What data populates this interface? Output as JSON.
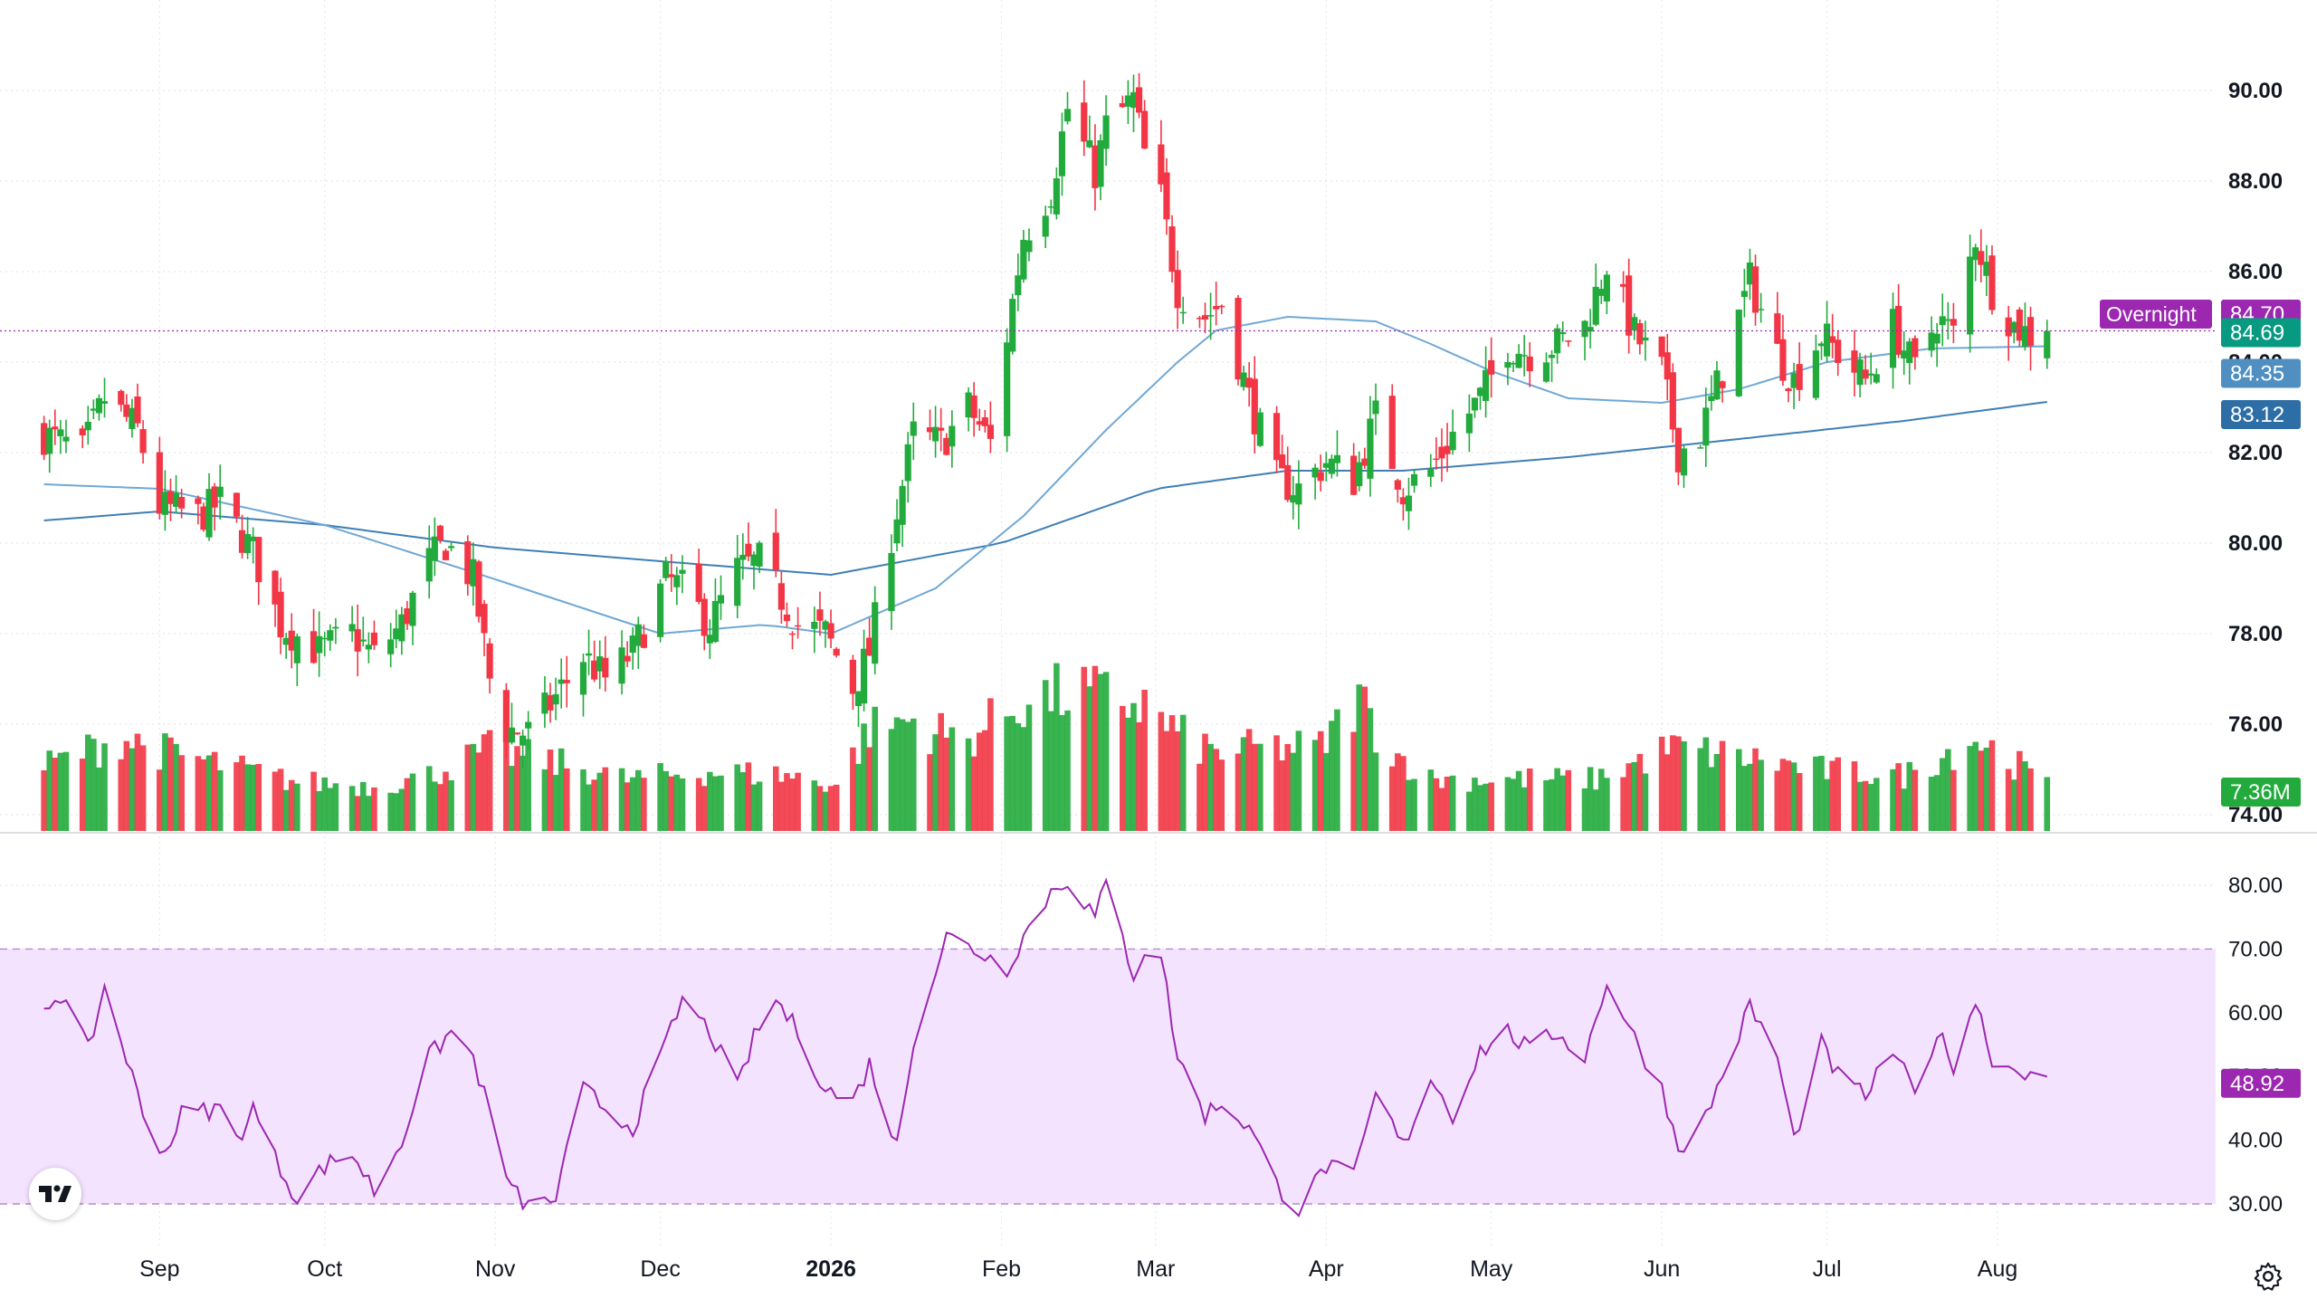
{
  "chart_data": [
    {
      "type": "candlestick",
      "title": "",
      "y_axis_ticks": [
        "90.00",
        "88.00",
        "86.00",
        "84.00",
        "82.00",
        "80.00",
        "78.00",
        "76.00",
        "74.00"
      ],
      "ylim": [
        73.6,
        90.8
      ],
      "x_axis_ticks": [
        {
          "label": "Sep",
          "date": "2025-09-01",
          "bold": false
        },
        {
          "label": "Oct",
          "date": "2025-10-01",
          "bold": false
        },
        {
          "label": "Nov",
          "date": "2025-11-01",
          "bold": false
        },
        {
          "label": "Dec",
          "date": "2025-12-01",
          "bold": false
        },
        {
          "label": "2026",
          "date": "2026-01-01",
          "bold": true
        },
        {
          "label": "Feb",
          "date": "2026-02-01",
          "bold": false
        },
        {
          "label": "Mar",
          "date": "2026-03-01",
          "bold": false
        },
        {
          "label": "Apr",
          "date": "2026-04-01",
          "bold": false
        },
        {
          "label": "May",
          "date": "2026-05-01",
          "bold": false
        },
        {
          "label": "Jun",
          "date": "2026-06-01",
          "bold": false
        },
        {
          "label": "Jul",
          "date": "2026-07-01",
          "bold": false
        },
        {
          "label": "Aug",
          "date": "2026-08-01",
          "bold": false
        }
      ],
      "close_anchors": [
        [
          "2025-08-11",
          82.4
        ],
        [
          "2025-08-18",
          82.0
        ],
        [
          "2025-08-22",
          83.2
        ],
        [
          "2025-08-28",
          82.5
        ],
        [
          "2025-09-01",
          80.8
        ],
        [
          "2025-09-08",
          80.6
        ],
        [
          "2025-09-12",
          80.9
        ],
        [
          "2025-09-18",
          79.8
        ],
        [
          "2025-09-23",
          78.2
        ],
        [
          "2025-09-30",
          77.6
        ],
        [
          "2025-10-06",
          78.0
        ],
        [
          "2025-10-10",
          77.5
        ],
        [
          "2025-10-15",
          78.2
        ],
        [
          "2025-10-20",
          79.6
        ],
        [
          "2025-10-23",
          80.0
        ],
        [
          "2025-10-28",
          79.2
        ],
        [
          "2025-10-31",
          77.0
        ],
        [
          "2025-11-03",
          75.9
        ],
        [
          "2025-11-07",
          75.8
        ],
        [
          "2025-11-12",
          76.6
        ],
        [
          "2025-11-17",
          77.5
        ],
        [
          "2025-11-21",
          77.0
        ],
        [
          "2025-11-26",
          77.6
        ],
        [
          "2025-12-02",
          79.2
        ],
        [
          "2025-12-05",
          79.0
        ],
        [
          "2025-12-10",
          78.2
        ],
        [
          "2025-12-15",
          79.4
        ],
        [
          "2025-12-19",
          79.6
        ],
        [
          "2025-12-26",
          78.2
        ],
        [
          "2025-12-31",
          78.0
        ],
        [
          "2026-01-05",
          76.8
        ],
        [
          "2026-01-08",
          77.6
        ],
        [
          "2026-01-12",
          80.2
        ],
        [
          "2026-01-16",
          82.4
        ],
        [
          "2026-01-21",
          82.2
        ],
        [
          "2026-01-26",
          83.0
        ],
        [
          "2026-01-30",
          82.2
        ],
        [
          "2026-02-02",
          84.6
        ],
        [
          "2026-02-05",
          86.8
        ],
        [
          "2026-02-10",
          87.8
        ],
        [
          "2026-02-13",
          89.6
        ],
        [
          "2026-02-18",
          88.2
        ],
        [
          "2026-02-20",
          89.2
        ],
        [
          "2026-02-25",
          89.8
        ],
        [
          "2026-02-27",
          88.6
        ],
        [
          "2026-03-02",
          87.6
        ],
        [
          "2026-03-05",
          85.6
        ],
        [
          "2026-03-10",
          85.0
        ],
        [
          "2026-03-13",
          85.3
        ],
        [
          "2026-03-18",
          83.2
        ],
        [
          "2026-03-23",
          81.4
        ],
        [
          "2026-03-27",
          81.2
        ],
        [
          "2026-04-01",
          81.8
        ],
        [
          "2026-04-06",
          81.4
        ],
        [
          "2026-04-10",
          82.8
        ],
        [
          "2026-04-15",
          81.2
        ],
        [
          "2026-04-20",
          81.6
        ],
        [
          "2026-04-24",
          82.4
        ],
        [
          "2026-04-29",
          83.2
        ],
        [
          "2026-05-04",
          84.4
        ],
        [
          "2026-05-08",
          84.2
        ],
        [
          "2026-05-13",
          84.4
        ],
        [
          "2026-05-18",
          84.8
        ],
        [
          "2026-05-22",
          86.2
        ],
        [
          "2026-05-27",
          84.6
        ],
        [
          "2026-06-01",
          83.8
        ],
        [
          "2026-06-04",
          82.0
        ],
        [
          "2026-06-08",
          82.4
        ],
        [
          "2026-06-12",
          83.8
        ],
        [
          "2026-06-17",
          85.8
        ],
        [
          "2026-06-22",
          84.2
        ],
        [
          "2026-06-25",
          83.6
        ],
        [
          "2026-06-30",
          84.6
        ],
        [
          "2026-07-03",
          84.2
        ],
        [
          "2026-07-08",
          83.6
        ],
        [
          "2026-07-13",
          84.8
        ],
        [
          "2026-07-17",
          83.8
        ],
        [
          "2026-07-21",
          85.0
        ],
        [
          "2026-07-24",
          84.6
        ],
        [
          "2026-07-28",
          86.8
        ],
        [
          "2026-07-31",
          85.6
        ],
        [
          "2026-08-04",
          84.8
        ],
        [
          "2026-08-07",
          84.6
        ],
        [
          "2026-08-10",
          84.69
        ]
      ],
      "volume_bar_heights_pct": [
        [
          "2025-08-11",
          35
        ],
        [
          "2025-08-25",
          50
        ],
        [
          "2025-09-03",
          42
        ],
        [
          "2025-09-15",
          34
        ],
        [
          "2025-09-25",
          27
        ],
        [
          "2025-10-10",
          24
        ],
        [
          "2025-10-20",
          30
        ],
        [
          "2025-10-31",
          44
        ],
        [
          "2025-11-10",
          38
        ],
        [
          "2025-11-25",
          28
        ],
        [
          "2025-12-10",
          32
        ],
        [
          "2025-12-24",
          30
        ],
        [
          "2026-01-02",
          25
        ],
        [
          "2026-01-08",
          55
        ],
        [
          "2026-01-15",
          60
        ],
        [
          "2026-01-25",
          48
        ],
        [
          "2026-02-05",
          70
        ],
        [
          "2026-02-15",
          75
        ],
        [
          "2026-02-27",
          68
        ],
        [
          "2026-03-05",
          52
        ],
        [
          "2026-03-12",
          42
        ],
        [
          "2026-03-20",
          45
        ],
        [
          "2026-03-31",
          45
        ],
        [
          "2026-04-07",
          72
        ],
        [
          "2026-04-12",
          45
        ],
        [
          "2026-04-20",
          28
        ],
        [
          "2026-05-05",
          28
        ],
        [
          "2026-05-20",
          28
        ],
        [
          "2026-06-03",
          45
        ],
        [
          "2026-06-15",
          40
        ],
        [
          "2026-06-30",
          33
        ],
        [
          "2026-07-15",
          30
        ],
        [
          "2026-07-28",
          50
        ],
        [
          "2026-08-05",
          35
        ],
        [
          "2026-08-10",
          24
        ]
      ],
      "ma_50_anchors": [
        [
          "2025-08-11",
          81.3
        ],
        [
          "2025-09-01",
          81.2
        ],
        [
          "2025-10-01",
          80.4
        ],
        [
          "2025-11-01",
          79.2
        ],
        [
          "2025-12-01",
          78.0
        ],
        [
          "2025-12-20",
          78.2
        ],
        [
          "2026-01-01",
          78.0
        ],
        [
          "2026-01-20",
          79.0
        ],
        [
          "2026-02-05",
          80.6
        ],
        [
          "2026-02-20",
          82.5
        ],
        [
          "2026-03-05",
          84.0
        ],
        [
          "2026-03-12",
          84.7
        ],
        [
          "2026-03-25",
          85.0
        ],
        [
          "2026-04-10",
          84.9
        ],
        [
          "2026-04-20",
          84.4
        ],
        [
          "2026-05-01",
          83.8
        ],
        [
          "2026-05-15",
          83.2
        ],
        [
          "2026-06-01",
          83.1
        ],
        [
          "2026-06-15",
          83.4
        ],
        [
          "2026-07-01",
          84.0
        ],
        [
          "2026-07-20",
          84.3
        ],
        [
          "2026-08-10",
          84.35
        ]
      ],
      "ma_200_anchors": [
        [
          "2025-08-11",
          80.5
        ],
        [
          "2025-09-01",
          80.7
        ],
        [
          "2025-10-01",
          80.4
        ],
        [
          "2025-11-01",
          79.9
        ],
        [
          "2025-12-01",
          79.6
        ],
        [
          "2026-01-01",
          79.3
        ],
        [
          "2026-02-01",
          80.0
        ],
        [
          "2026-03-01",
          81.2
        ],
        [
          "2026-03-25",
          81.6
        ],
        [
          "2026-04-15",
          81.6
        ],
        [
          "2026-05-15",
          81.9
        ],
        [
          "2026-06-15",
          82.3
        ],
        [
          "2026-07-15",
          82.7
        ],
        [
          "2026-08-10",
          83.12
        ]
      ],
      "series": [
        {
          "name": "Overnight",
          "value": "84.70",
          "color": "#9c27b0"
        },
        {
          "name": "",
          "value": "84.69",
          "color": "#089981"
        },
        {
          "name": "",
          "value": "84.35",
          "color": "#4f8fc2"
        },
        {
          "name": "",
          "value": "83.12",
          "color": "#2e6ea6"
        },
        {
          "name": "",
          "value": "7.36M",
          "color": "#22ab3c"
        }
      ],
      "up_color": "#22ab3c",
      "down_color": "#f23645"
    },
    {
      "type": "line",
      "title": "",
      "y_axis_ticks": [
        "80.00",
        "70.00",
        "60.00",
        "50.00",
        "40.00",
        "30.00"
      ],
      "ylim": [
        27,
        84
      ],
      "band": [
        30,
        70
      ],
      "anchors": [
        [
          "2025-08-11",
          61
        ],
        [
          "2025-08-14",
          63
        ],
        [
          "2025-08-19",
          54
        ],
        [
          "2025-08-22",
          64
        ],
        [
          "2025-08-26",
          53
        ],
        [
          "2025-08-29",
          44
        ],
        [
          "2025-09-02",
          38
        ],
        [
          "2025-09-05",
          44
        ],
        [
          "2025-09-12",
          45
        ],
        [
          "2025-09-15",
          40
        ],
        [
          "2025-09-18",
          45
        ],
        [
          "2025-09-22",
          37
        ],
        [
          "2025-09-26",
          31
        ],
        [
          "2025-10-01",
          36
        ],
        [
          "2025-10-06",
          38
        ],
        [
          "2025-10-10",
          32
        ],
        [
          "2025-10-15",
          40
        ],
        [
          "2025-10-20",
          53
        ],
        [
          "2025-10-24",
          57
        ],
        [
          "2025-10-28",
          53
        ],
        [
          "2025-10-31",
          44
        ],
        [
          "2025-11-04",
          32
        ],
        [
          "2025-11-08",
          29
        ],
        [
          "2025-11-12",
          31
        ],
        [
          "2025-11-17",
          48
        ],
        [
          "2025-11-21",
          45
        ],
        [
          "2025-11-26",
          42
        ],
        [
          "2025-12-02",
          55
        ],
        [
          "2025-12-05",
          62
        ],
        [
          "2025-12-10",
          57
        ],
        [
          "2025-12-15",
          48
        ],
        [
          "2025-12-18",
          56
        ],
        [
          "2025-12-22",
          62
        ],
        [
          "2025-12-26",
          57
        ],
        [
          "2025-12-31",
          48
        ],
        [
          "2026-01-05",
          46
        ],
        [
          "2026-01-08",
          52
        ],
        [
          "2026-01-13",
          39
        ],
        [
          "2026-01-16",
          56
        ],
        [
          "2026-01-22",
          72
        ],
        [
          "2026-01-27",
          70
        ],
        [
          "2026-02-02",
          67
        ],
        [
          "2026-02-05",
          72
        ],
        [
          "2026-02-10",
          79
        ],
        [
          "2026-02-13",
          81
        ],
        [
          "2026-02-18",
          75
        ],
        [
          "2026-02-20",
          80
        ],
        [
          "2026-02-25",
          66
        ],
        [
          "2026-02-27",
          70
        ],
        [
          "2026-03-02",
          69
        ],
        [
          "2026-03-05",
          53
        ],
        [
          "2026-03-10",
          44
        ],
        [
          "2026-03-13",
          46
        ],
        [
          "2026-03-18",
          42
        ],
        [
          "2026-03-23",
          33
        ],
        [
          "2026-03-27",
          29
        ],
        [
          "2026-04-01",
          36
        ],
        [
          "2026-04-06",
          34
        ],
        [
          "2026-04-10",
          47
        ],
        [
          "2026-04-15",
          39
        ],
        [
          "2026-04-20",
          50
        ],
        [
          "2026-04-24",
          44
        ],
        [
          "2026-04-29",
          54
        ],
        [
          "2026-05-04",
          57
        ],
        [
          "2026-05-08",
          54
        ],
        [
          "2026-05-13",
          57
        ],
        [
          "2026-05-18",
          53
        ],
        [
          "2026-05-22",
          65
        ],
        [
          "2026-05-27",
          56
        ],
        [
          "2026-06-01",
          48
        ],
        [
          "2026-06-04",
          39
        ],
        [
          "2026-06-08",
          42
        ],
        [
          "2026-06-12",
          50
        ],
        [
          "2026-06-17",
          61
        ],
        [
          "2026-06-22",
          53
        ],
        [
          "2026-06-25",
          40
        ],
        [
          "2026-06-30",
          55
        ],
        [
          "2026-07-03",
          50
        ],
        [
          "2026-07-08",
          47
        ],
        [
          "2026-07-13",
          54
        ],
        [
          "2026-07-17",
          47
        ],
        [
          "2026-07-21",
          57
        ],
        [
          "2026-07-24",
          52
        ],
        [
          "2026-07-28",
          62
        ],
        [
          "2026-07-31",
          53
        ],
        [
          "2026-08-04",
          51
        ],
        [
          "2026-08-07",
          51
        ],
        [
          "2026-08-10",
          48.92
        ]
      ],
      "series": [
        {
          "name": "",
          "value": "48.92",
          "color": "#9c27b0"
        }
      ],
      "line_color": "#9c27b0",
      "band_fill": "#f3e3ff"
    }
  ]
}
